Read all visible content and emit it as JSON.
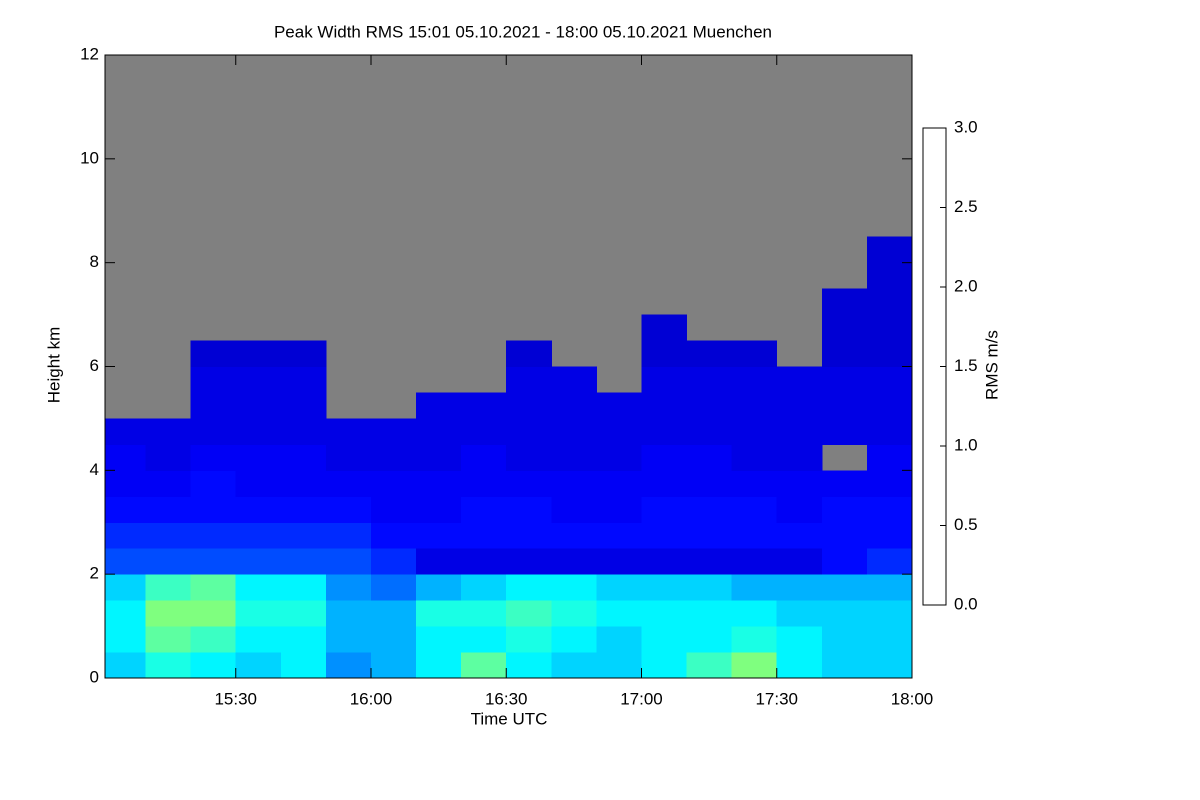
{
  "chart_data": {
    "type": "heatmap",
    "title": "Peak Width RMS   15:01 05.10.2021 - 18:00 05.10.2021 Muenchen",
    "x_label": "Time UTC",
    "y_label": "Height km",
    "colorbar_label": "RMS m/s",
    "xlim": [
      "15:01",
      "18:00"
    ],
    "xticks": [
      "15:30",
      "16:00",
      "16:30",
      "17:00",
      "17:30",
      "18:00"
    ],
    "ylim": [
      0,
      12
    ],
    "yticks": [
      0,
      2,
      4,
      6,
      8,
      10,
      12
    ],
    "zlim": [
      0,
      3
    ],
    "zticks": [
      {
        "value": 0,
        "label": "0.0"
      },
      {
        "value": 0.5,
        "label": "0.5"
      },
      {
        "value": 1,
        "label": "1.0"
      },
      {
        "value": 1.5,
        "label": "1.5"
      },
      {
        "value": 2,
        "label": "2.0"
      },
      {
        "value": 2.5,
        "label": "2.5"
      },
      {
        "value": 3,
        "label": "3.0"
      }
    ],
    "colormap": [
      "#00007f",
      "#0000ff",
      "#007fff",
      "#00ffff",
      "#7fff7f",
      "#ffff00",
      "#ff7f00",
      "#ff0000",
      "#7f0000"
    ],
    "no_data_color": "#808080",
    "x_edges": [
      "15:01",
      "15:10",
      "15:20",
      "15:30",
      "15:40",
      "15:50",
      "16:00",
      "16:10",
      "16:20",
      "16:30",
      "16:40",
      "16:50",
      "17:00",
      "17:10",
      "17:20",
      "17:30",
      "17:40",
      "17:50",
      "18:00"
    ],
    "y_edges": [
      0,
      0.5,
      1,
      1.5,
      2,
      2.5,
      3,
      3.5,
      4,
      4.5,
      5,
      5.5,
      6,
      6.5,
      7,
      7.5,
      8,
      8.5
    ],
    "z": [
      [
        1.0,
        1.2,
        1.1,
        1.0,
        1.1,
        0.8,
        0.9,
        1.1,
        1.4,
        1.1,
        1.0,
        1.0,
        1.1,
        1.3,
        1.5,
        1.1,
        1.0,
        1.0
      ],
      [
        1.1,
        1.4,
        1.3,
        1.1,
        1.1,
        0.9,
        0.9,
        1.1,
        1.1,
        1.2,
        1.1,
        1.0,
        1.1,
        1.1,
        1.2,
        1.1,
        1.0,
        1.0
      ],
      [
        1.1,
        1.5,
        1.5,
        1.2,
        1.2,
        0.9,
        0.9,
        1.2,
        1.2,
        1.3,
        1.2,
        1.1,
        1.1,
        1.1,
        1.1,
        1.0,
        1.0,
        1.0
      ],
      [
        1.0,
        1.3,
        1.4,
        1.1,
        1.1,
        0.8,
        0.7,
        0.9,
        1.0,
        1.1,
        1.1,
        1.0,
        1.0,
        1.0,
        0.9,
        0.9,
        0.9,
        0.9
      ],
      [
        0.6,
        0.6,
        0.6,
        0.6,
        0.6,
        0.6,
        0.5,
        0.3,
        0.3,
        0.3,
        0.3,
        0.3,
        0.3,
        0.3,
        0.3,
        0.3,
        0.4,
        0.5
      ],
      [
        0.5,
        0.5,
        0.5,
        0.5,
        0.5,
        0.5,
        0.4,
        0.4,
        0.4,
        0.4,
        0.4,
        0.4,
        0.4,
        0.4,
        0.4,
        0.4,
        0.4,
        0.4
      ],
      [
        0.4,
        0.4,
        0.4,
        0.4,
        0.4,
        0.4,
        0.35,
        0.35,
        0.4,
        0.4,
        0.35,
        0.35,
        0.4,
        0.4,
        0.4,
        0.35,
        0.4,
        0.4
      ],
      [
        0.35,
        0.35,
        0.4,
        0.35,
        0.35,
        0.35,
        0.35,
        0.35,
        0.35,
        0.35,
        0.35,
        0.35,
        0.35,
        0.35,
        0.35,
        0.35,
        0.35,
        0.35
      ],
      [
        0.35,
        0.3,
        0.35,
        0.35,
        0.35,
        0.3,
        0.3,
        0.3,
        0.35,
        0.3,
        0.3,
        0.3,
        0.35,
        0.35,
        0.3,
        0.3,
        null,
        0.35
      ],
      [
        0.3,
        0.3,
        0.3,
        0.3,
        0.3,
        0.3,
        0.3,
        0.3,
        0.3,
        0.3,
        0.3,
        0.3,
        0.3,
        0.3,
        0.3,
        0.3,
        0.3,
        0.3
      ],
      [
        null,
        null,
        0.3,
        0.3,
        0.3,
        null,
        null,
        0.3,
        0.3,
        0.3,
        0.3,
        0.3,
        0.3,
        0.3,
        0.3,
        0.3,
        0.3,
        0.3
      ],
      [
        null,
        null,
        0.3,
        0.3,
        0.3,
        null,
        null,
        null,
        null,
        0.3,
        0.3,
        null,
        0.3,
        0.3,
        0.3,
        0.3,
        0.3,
        0.3
      ],
      [
        null,
        null,
        0.25,
        0.25,
        0.25,
        null,
        null,
        null,
        null,
        0.25,
        null,
        null,
        0.25,
        0.25,
        0.25,
        null,
        0.25,
        0.25
      ],
      [
        null,
        null,
        null,
        null,
        null,
        null,
        null,
        null,
        null,
        null,
        null,
        null,
        0.25,
        null,
        null,
        null,
        0.25,
        0.25
      ],
      [
        null,
        null,
        null,
        null,
        null,
        null,
        null,
        null,
        null,
        null,
        null,
        null,
        null,
        null,
        null,
        null,
        0.25,
        0.25
      ],
      [
        null,
        null,
        null,
        null,
        null,
        null,
        null,
        null,
        null,
        null,
        null,
        null,
        null,
        null,
        null,
        null,
        null,
        0.25
      ],
      [
        null,
        null,
        null,
        null,
        null,
        null,
        null,
        null,
        null,
        null,
        null,
        null,
        null,
        null,
        null,
        null,
        null,
        0.25
      ]
    ]
  }
}
